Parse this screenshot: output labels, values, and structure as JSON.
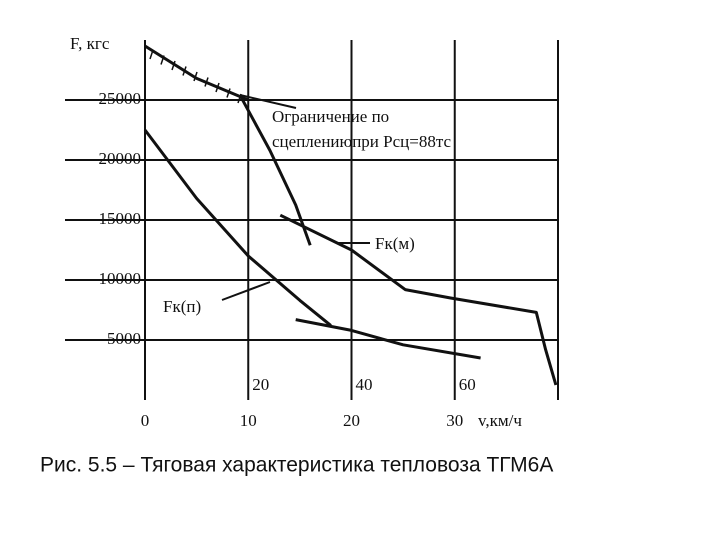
{
  "chart_data": {
    "type": "line",
    "y_label": "F, кгс",
    "x_label": "v,км/ч",
    "caption": "Рис. 5.5 – Тяговая характеристика тепловоза ТГМ6А",
    "xlim": [
      0,
      40
    ],
    "xticks": [
      0,
      10,
      20,
      30
    ],
    "x2lim": [
      0,
      80
    ],
    "x2ticks": [
      20,
      40,
      60
    ],
    "ylim": [
      0,
      30000
    ],
    "yticks": [
      5000,
      10000,
      15000,
      20000,
      25000
    ],
    "grid": true,
    "annotations": [
      {
        "lines": [
          "Ограничение по",
          "сцеплениюпри Рсц=88тс"
        ]
      }
    ],
    "series": [
      {
        "color": "#111",
        "x": [
          0,
          5,
          10
        ],
        "values": [
          29500,
          26800,
          25000
        ]
      },
      {
        "name": "Fк(м)",
        "color": "#111",
        "x": [
          9.2,
          12.1,
          14.6,
          16,
          null,
          13.1,
          20,
          25.2,
          29.6,
          37.9,
          38.8,
          39.8
        ],
        "values": [
          25400,
          20800,
          16250,
          12900,
          null,
          15400,
          12500,
          9200,
          8500,
          7300,
          4200,
          1250
        ]
      },
      {
        "name": "Fк(п)",
        "color": "#111",
        "x": [
          0,
          5,
          10,
          15,
          18
        ],
        "values": [
          22500,
          16800,
          12000,
          8300,
          6200
        ]
      },
      {
        "color": "#111",
        "x": [
          14.6,
          20,
          25,
          32.5
        ],
        "values": [
          6700,
          5800,
          4600,
          3500
        ]
      }
    ]
  }
}
